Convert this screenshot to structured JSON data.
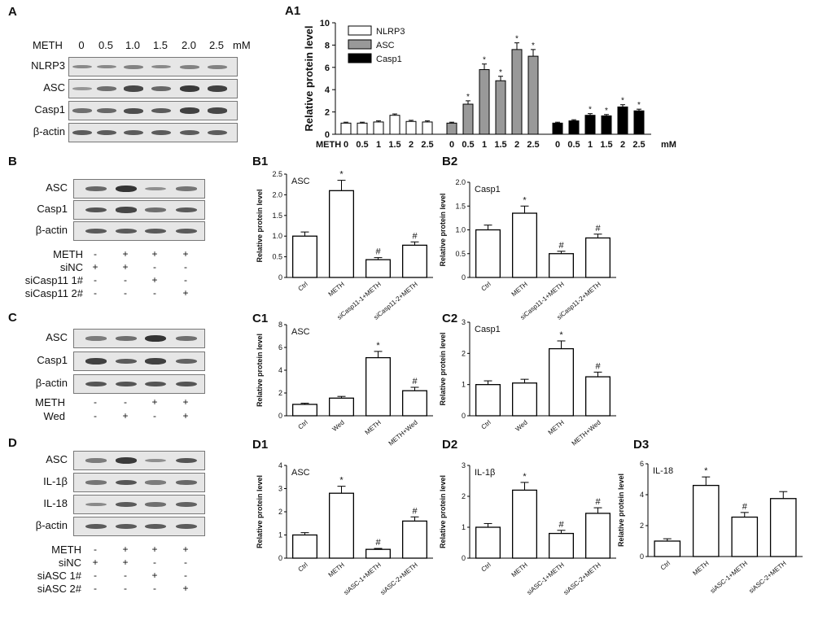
{
  "panels": {
    "A": {
      "letter": "A",
      "treatment_label": "METH",
      "doses": [
        "0",
        "0.5",
        "1.0",
        "1.5",
        "2.0",
        "2.5"
      ],
      "unit": "mM",
      "blots": [
        {
          "label": "NLRP3",
          "intensities": [
            0.35,
            0.35,
            0.4,
            0.35,
            0.4,
            0.4
          ]
        },
        {
          "label": "ASC",
          "intensities": [
            0.25,
            0.55,
            0.85,
            0.6,
            0.95,
            0.9
          ]
        },
        {
          "label": "Casp1",
          "intensities": [
            0.55,
            0.6,
            0.8,
            0.7,
            0.9,
            0.85
          ]
        },
        {
          "label": "β-actin",
          "intensities": [
            0.7,
            0.7,
            0.7,
            0.7,
            0.7,
            0.7
          ]
        }
      ]
    },
    "B": {
      "letter": "B",
      "blots": [
        {
          "label": "ASC",
          "intensities": [
            0.6,
            1.0,
            0.3,
            0.5
          ]
        },
        {
          "label": "Casp1",
          "intensities": [
            0.75,
            0.85,
            0.55,
            0.7
          ]
        },
        {
          "label": "β-actin",
          "intensities": [
            0.7,
            0.7,
            0.7,
            0.7
          ]
        }
      ],
      "conditions": [
        {
          "label": "METH",
          "signs": [
            "-",
            "+",
            "+",
            "+"
          ]
        },
        {
          "label": "siNC",
          "signs": [
            "+",
            "+",
            "-",
            "-"
          ]
        },
        {
          "label": "siCasp11 1#",
          "signs": [
            "-",
            "-",
            "+",
            "-"
          ]
        },
        {
          "label": "siCasp11 2#",
          "signs": [
            "-",
            "-",
            "-",
            "+"
          ]
        }
      ]
    },
    "C": {
      "letter": "C",
      "blots": [
        {
          "label": "ASC",
          "intensities": [
            0.45,
            0.55,
            1.0,
            0.55
          ]
        },
        {
          "label": "Casp1",
          "intensities": [
            0.9,
            0.7,
            0.9,
            0.65
          ]
        },
        {
          "label": "β-actin",
          "intensities": [
            0.75,
            0.75,
            0.75,
            0.75
          ]
        }
      ],
      "conditions": [
        {
          "label": "METH",
          "signs": [
            "-",
            "-",
            "+",
            "+"
          ]
        },
        {
          "label": "Wed",
          "signs": [
            "-",
            "+",
            "-",
            "+"
          ]
        }
      ]
    },
    "D": {
      "letter": "D",
      "blots": [
        {
          "label": "ASC",
          "intensities": [
            0.45,
            0.95,
            0.3,
            0.75
          ]
        },
        {
          "label": "IL-1β",
          "intensities": [
            0.5,
            0.75,
            0.45,
            0.6
          ]
        },
        {
          "label": "IL-18",
          "intensities": [
            0.35,
            0.7,
            0.55,
            0.65
          ]
        },
        {
          "label": "β-actin",
          "intensities": [
            0.7,
            0.7,
            0.7,
            0.7
          ]
        }
      ],
      "conditions": [
        {
          "label": "METH",
          "signs": [
            "-",
            "+",
            "+",
            "+"
          ]
        },
        {
          "label": "siNC",
          "signs": [
            "+",
            "+",
            "-",
            "-"
          ]
        },
        {
          "label": "siASC  1#",
          "signs": [
            "-",
            "-",
            "+",
            "-"
          ]
        },
        {
          "label": "siASC  2#",
          "signs": [
            "-",
            "-",
            "-",
            "+"
          ]
        }
      ]
    }
  },
  "chart_data": [
    {
      "id": "A1",
      "panel_letter": "A1",
      "type": "bar",
      "ylabel": "Relative protein level",
      "ylim": [
        0,
        10
      ],
      "yticks": [
        0,
        2,
        4,
        6,
        8,
        10
      ],
      "x_prefix": "METH",
      "x_unit": "mM",
      "categories": [
        "0",
        "0.5",
        "1",
        "1.5",
        "2",
        "2.5"
      ],
      "legend_position": "top-left",
      "series": [
        {
          "name": "NLRP3",
          "color": "#ffffff",
          "values": [
            1.0,
            1.0,
            1.1,
            1.7,
            1.15,
            1.1
          ],
          "errors": [
            0.08,
            0.08,
            0.1,
            0.12,
            0.1,
            0.1
          ],
          "marks": [
            "",
            "",
            "",
            "",
            "",
            ""
          ]
        },
        {
          "name": "ASC",
          "color": "#999999",
          "values": [
            1.0,
            2.7,
            5.8,
            4.8,
            7.6,
            7.0
          ],
          "errors": [
            0.08,
            0.3,
            0.5,
            0.4,
            0.6,
            0.6
          ],
          "marks": [
            "",
            "*",
            "*",
            "*",
            "*",
            "*"
          ]
        },
        {
          "name": "Casp1",
          "color": "#000000",
          "values": [
            1.0,
            1.2,
            1.7,
            1.65,
            2.45,
            2.1
          ],
          "errors": [
            0.08,
            0.1,
            0.15,
            0.12,
            0.2,
            0.15
          ],
          "marks": [
            "",
            "",
            "*",
            "*",
            "*",
            "*"
          ]
        }
      ]
    },
    {
      "id": "B1",
      "panel_letter": "B1",
      "type": "bar",
      "title": "ASC",
      "ylabel": "Relative protein level",
      "ylim": [
        0,
        2.5
      ],
      "yticks": [
        "0",
        "0.5",
        "1.0",
        "1.5",
        "2.0",
        "2.5"
      ],
      "categories": [
        "Ctrl",
        "METH",
        "siCasp11-1+METH",
        "siCasp11-2+METH"
      ],
      "values": [
        1.0,
        2.1,
        0.43,
        0.78
      ],
      "errors": [
        0.1,
        0.25,
        0.05,
        0.08
      ],
      "marks": [
        "",
        "*",
        "#",
        "#"
      ]
    },
    {
      "id": "B2",
      "panel_letter": "B2",
      "type": "bar",
      "title": "Casp1",
      "ylabel": "Relative protein level",
      "ylim": [
        0,
        2.0
      ],
      "yticks": [
        "0",
        "0.5",
        "1.0",
        "1.5",
        "2.0"
      ],
      "categories": [
        "Ctrl",
        "METH",
        "siCasp11-1+METH",
        "siCasp11-2+METH"
      ],
      "values": [
        1.0,
        1.35,
        0.5,
        0.83
      ],
      "errors": [
        0.1,
        0.15,
        0.05,
        0.08
      ],
      "marks": [
        "",
        "*",
        "#",
        "#"
      ]
    },
    {
      "id": "C1",
      "panel_letter": "C1",
      "type": "bar",
      "title": "ASC",
      "ylabel": "Relative protein level",
      "ylim": [
        0,
        8
      ],
      "yticks": [
        "0",
        "2",
        "4",
        "6",
        "8"
      ],
      "categories": [
        "Ctrl",
        "Wed",
        "METH",
        "METH+Wed"
      ],
      "values": [
        1.0,
        1.55,
        5.1,
        2.2
      ],
      "errors": [
        0.1,
        0.15,
        0.55,
        0.3
      ],
      "marks": [
        "",
        "",
        "*",
        "#"
      ]
    },
    {
      "id": "C2",
      "panel_letter": "C2",
      "type": "bar",
      "title": "Casp1",
      "ylabel": "Relative protein level",
      "ylim": [
        0,
        3
      ],
      "yticks": [
        "0",
        "1",
        "2",
        "3"
      ],
      "categories": [
        "Ctrl",
        "Wed",
        "METH",
        "METH+Wed"
      ],
      "values": [
        1.0,
        1.05,
        2.15,
        1.25
      ],
      "errors": [
        0.12,
        0.12,
        0.25,
        0.15
      ],
      "marks": [
        "",
        "",
        "*",
        "#"
      ]
    },
    {
      "id": "D1",
      "panel_letter": "D1",
      "type": "bar",
      "title": "ASC",
      "ylabel": "Relative protein level",
      "ylim": [
        0,
        4
      ],
      "yticks": [
        "0",
        "1",
        "2",
        "3",
        "4"
      ],
      "categories": [
        "Ctrl",
        "METH",
        "siASC-1+METH",
        "siASC-2+METH"
      ],
      "values": [
        1.0,
        2.8,
        0.38,
        1.6
      ],
      "errors": [
        0.1,
        0.3,
        0.04,
        0.18
      ],
      "marks": [
        "",
        "*",
        "#",
        "#"
      ]
    },
    {
      "id": "D2",
      "panel_letter": "D2",
      "type": "bar",
      "title": "IL-1β",
      "ylabel": "Relative protein level",
      "ylim": [
        0,
        3
      ],
      "yticks": [
        "0",
        "1",
        "2",
        "3"
      ],
      "categories": [
        "Ctrl",
        "METH",
        "siASC-1+METH",
        "siASC-2+METH"
      ],
      "values": [
        1.0,
        2.2,
        0.8,
        1.45
      ],
      "errors": [
        0.12,
        0.25,
        0.1,
        0.18
      ],
      "marks": [
        "",
        "*",
        "#",
        "#"
      ]
    },
    {
      "id": "D3",
      "panel_letter": "D3",
      "type": "bar",
      "title": "IL-18",
      "ylabel": "Relative protein level",
      "ylim": [
        0,
        6
      ],
      "yticks": [
        "0",
        "2",
        "4",
        "6"
      ],
      "categories": [
        "Ctrl",
        "METH",
        "siASC-1+METH",
        "siASC-2+METH"
      ],
      "values": [
        1.0,
        4.6,
        2.55,
        3.75
      ],
      "errors": [
        0.15,
        0.55,
        0.3,
        0.45
      ],
      "marks": [
        "",
        "*",
        "#",
        ""
      ]
    }
  ]
}
